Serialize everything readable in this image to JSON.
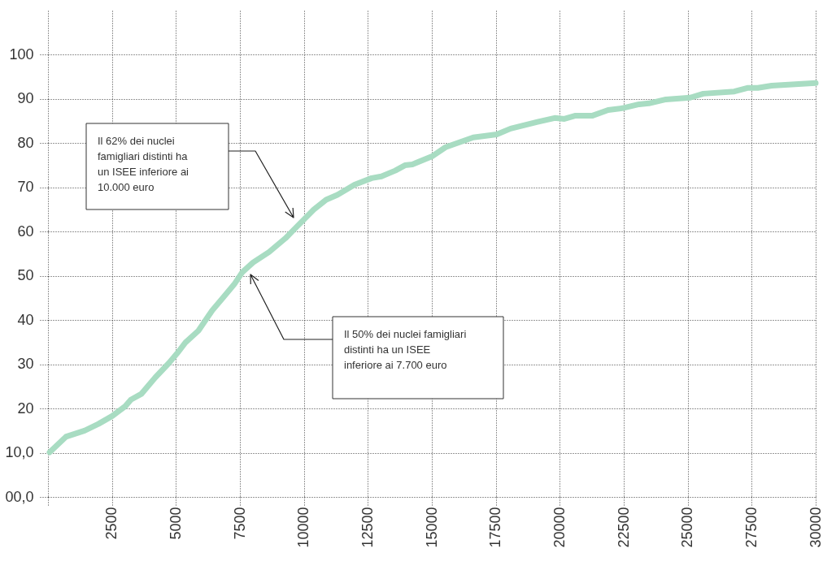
{
  "chart_data": {
    "type": "line",
    "x": [
      64,
      700,
      1430,
      1970,
      2510,
      3020,
      3240,
      3650,
      4190,
      4730,
      5050,
      5370,
      5880,
      6420,
      6830,
      7280,
      7590,
      8010,
      8640,
      9280,
      9600,
      10390,
      10870,
      11310,
      11980,
      12650,
      13030,
      13570,
      13950,
      14240,
      15030,
      15540,
      16620,
      17540,
      18080,
      19130,
      19800,
      20180,
      20590,
      21260,
      21890,
      22430,
      23100,
      23480,
      24150,
      25100,
      25610,
      26820,
      27330,
      27740,
      28280,
      30000
    ],
    "series": [
      {
        "color": "#a8dcc2",
        "values": [
          10.1,
          13.6,
          15.0,
          16.5,
          18.3,
          20.5,
          22.0,
          23.3,
          27.0,
          30.3,
          32.5,
          34.9,
          37.6,
          42.2,
          45.0,
          48.1,
          50.8,
          53.0,
          55.4,
          58.5,
          60.4,
          65.0,
          67.2,
          68.3,
          70.6,
          72.1,
          72.5,
          73.8,
          75.0,
          75.2,
          77.1,
          79.1,
          81.3,
          82.0,
          83.3,
          84.8,
          85.7,
          85.5,
          86.2,
          86.2,
          87.5,
          87.9,
          88.8,
          89.0,
          89.9,
          90.3,
          91.2,
          91.7,
          92.5,
          92.5,
          93.0,
          93.6
        ]
      }
    ],
    "xlim": [
      0,
      30000
    ],
    "xticks": [
      {
        "value": 0,
        "label": null
      },
      2500,
      5000,
      7500,
      10000,
      12500,
      15000,
      17500,
      20000,
      22500,
      25000,
      27500,
      30000
    ],
    "ylim": [
      0,
      110
    ],
    "yticks": [
      {
        "value": 0,
        "label": "00,0"
      },
      {
        "value": 10,
        "label": "10,0"
      },
      20,
      30,
      40,
      50,
      60,
      70,
      80,
      90,
      100
    ],
    "grid": true,
    "marker": "none",
    "line_style": "solid",
    "annotations": [
      "Il 62% dei nuclei famigliari distinti ha un ISEE inferiore ai 10.000 euro",
      "Il 50% dei nuclei famigliari distinti ha un ISEE inferiore ai 7.700 euro"
    ]
  }
}
